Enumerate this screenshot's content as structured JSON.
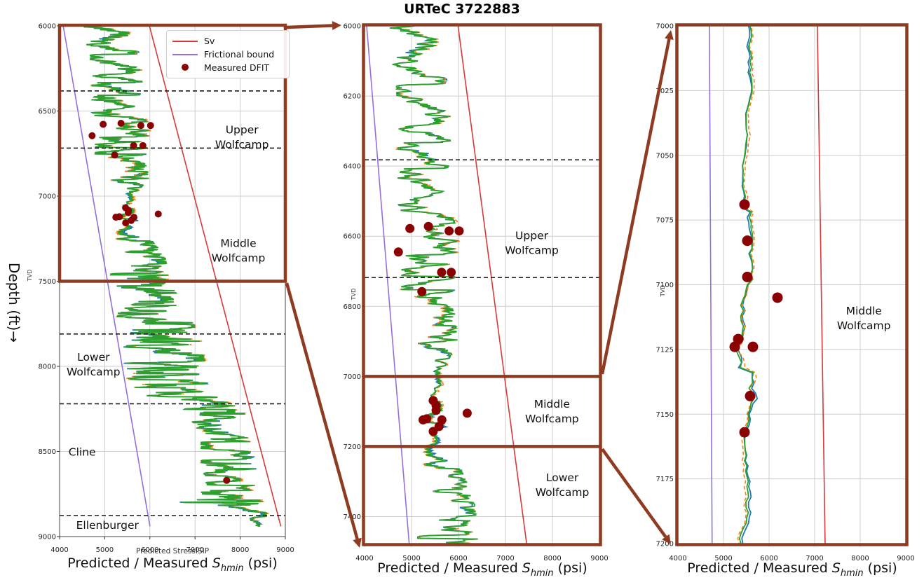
{
  "title": "URTeC 3722883",
  "axis_labels": {
    "depth_axis": "Depth (ft)→",
    "tvd": "TVD",
    "small_left_xlabel": "Predicted StressISIP",
    "big_xlabel_parts": {
      "prefix": "Predicted / Measured ",
      "symbol": "S",
      "subscript": "hmin",
      "suffix": " (psi)"
    }
  },
  "legend": {
    "items": [
      {
        "label": "Sv",
        "marker": "line",
        "color": "#d63a3a"
      },
      {
        "label": "Frictional bound",
        "marker": "line",
        "color": "#9370db"
      },
      {
        "label": "Measured DFIT",
        "marker": "dot",
        "color": "#8b0000"
      }
    ]
  },
  "colors": {
    "sv_red": "#d63a3a",
    "frictional_purple": "#9370db",
    "dfit_darkred": "#8b0000",
    "trace_green": "#2ca02c",
    "trace_blue": "#1f77b4",
    "trace_orange": "#ff7f0e",
    "highlight_brown": "#8e3b22",
    "grid_gray": "#cccccc",
    "spine_gray": "#444444",
    "boundary_black": "#1a1a1a"
  },
  "chart_data": {
    "type": "line",
    "title": "URTeC 3722883",
    "xlabel": "Predicted / Measured S_hmin (psi)",
    "ylabel": "Depth (ft), TVD",
    "grid": true,
    "shared": {
      "x_ticks": [
        4000,
        5000,
        6000,
        7000,
        8000,
        9000
      ],
      "formation_boundaries_ft": [
        6382,
        6718,
        7810,
        8220,
        8876
      ],
      "dfit_points": [
        {
          "psi": 4965,
          "depth": 6578
        },
        {
          "psi": 5360,
          "depth": 6572
        },
        {
          "psi": 5800,
          "depth": 6585
        },
        {
          "psi": 6015,
          "depth": 6585
        },
        {
          "psi": 4720,
          "depth": 6645
        },
        {
          "psi": 5640,
          "depth": 6703
        },
        {
          "psi": 5845,
          "depth": 6703
        },
        {
          "psi": 5220,
          "depth": 6758
        },
        {
          "psi": 5462,
          "depth": 7069
        },
        {
          "psi": 5523,
          "depth": 7083
        },
        {
          "psi": 5523,
          "depth": 7097
        },
        {
          "psi": 6185,
          "depth": 7105
        },
        {
          "psi": 5323,
          "depth": 7121
        },
        {
          "psi": 5246,
          "depth": 7124
        },
        {
          "psi": 5646,
          "depth": 7124
        },
        {
          "psi": 5585,
          "depth": 7143
        },
        {
          "psi": 5462,
          "depth": 7157
        },
        {
          "psi": 7700,
          "depth": 8670
        }
      ],
      "traces": [
        {
          "name": "predicted-stress-green",
          "color": "#2ca02c",
          "dash": null,
          "width": 1.8
        },
        {
          "name": "predicted-stress-blue",
          "color": "#1f77b4",
          "dash": null,
          "width": 1.8
        },
        {
          "name": "predicted-stress-orange",
          "color": "#ff7f0e",
          "dash": "5 3.5",
          "width": 1.6
        }
      ],
      "curve_envelope": [
        [
          6000,
          4900,
          520
        ],
        [
          6150,
          5150,
          480
        ],
        [
          6300,
          5250,
          520
        ],
        [
          6450,
          5200,
          500
        ],
        [
          6600,
          5350,
          560
        ],
        [
          6760,
          5300,
          520
        ],
        [
          6900,
          5400,
          520
        ],
        [
          7000,
          5480,
          120
        ],
        [
          7060,
          5520,
          110
        ],
        [
          7120,
          5470,
          150
        ],
        [
          7135,
          5520,
          260
        ],
        [
          7160,
          5450,
          120
        ],
        [
          7200,
          5420,
          160
        ],
        [
          7240,
          5500,
          420
        ],
        [
          7350,
          5700,
          560
        ],
        [
          7500,
          5750,
          620
        ],
        [
          7650,
          5950,
          700
        ],
        [
          7800,
          6150,
          820
        ],
        [
          7980,
          6300,
          820
        ],
        [
          8150,
          6350,
          800
        ],
        [
          8240,
          7350,
          620
        ],
        [
          8400,
          7650,
          520
        ],
        [
          8560,
          7700,
          560
        ],
        [
          8720,
          7800,
          520
        ],
        [
          8795,
          7100,
          1350
        ],
        [
          8820,
          8100,
          350
        ],
        [
          8880,
          8420,
          220
        ],
        [
          8940,
          8450,
          150
        ]
      ],
      "curve_depth_range": [
        6000,
        8940
      ],
      "seed": 42
    },
    "panels": [
      {
        "id": "left",
        "depth_range": [
          6000,
          9000
        ],
        "x_range": [
          4000,
          9000
        ],
        "y_ticks": [
          6000,
          6500,
          7000,
          7500,
          8000,
          8500,
          9000
        ],
        "sv_line": [
          [
            6000,
            5990
          ],
          [
            8940,
            8901
          ]
        ],
        "frictional_bound": [
          [
            6000,
            4080
          ],
          [
            8940,
            6001
          ]
        ],
        "highlight": {
          "type": "rect",
          "depth_top": 6000,
          "depth_bottom": 7500
        },
        "formation_labels": [
          {
            "lines": [
              "Upper",
              "Wolfcamp"
            ],
            "psi": 8040,
            "depth": 6655
          },
          {
            "lines": [
              "Middle",
              "Wolfcamp"
            ],
            "psi": 7960,
            "depth": 7320
          },
          {
            "lines": [
              "Lower",
              "Wolfcamp"
            ],
            "psi": 4750,
            "depth": 7990
          },
          {
            "lines": [
              "Cline"
            ],
            "psi": 4500,
            "depth": 8505
          },
          {
            "lines": [
              "Ellenburger"
            ],
            "psi": 5060,
            "depth": 8935
          }
        ],
        "dfit_radius": 5
      },
      {
        "id": "middle",
        "depth_range": [
          6000,
          7477
        ],
        "x_range": [
          4000,
          9000
        ],
        "y_ticks": [
          6000,
          6200,
          6400,
          6600,
          6800,
          7000,
          7200,
          7400
        ],
        "sv_line": [
          [
            6000,
            5990
          ],
          [
            7477,
            7450
          ]
        ],
        "frictional_bound": [
          [
            6000,
            4045
          ],
          [
            7477,
            4950
          ]
        ],
        "highlight": {
          "type": "frame_with_lines",
          "line_depths": [
            7000,
            7200
          ]
        },
        "formation_labels": [
          {
            "lines": [
              "Upper",
              "Wolfcamp"
            ],
            "psi": 7560,
            "depth": 6620
          },
          {
            "lines": [
              "Middle",
              "Wolfcamp"
            ],
            "psi": 7990,
            "depth": 7100
          },
          {
            "lines": [
              "Lower",
              "Wolfcamp"
            ],
            "psi": 8210,
            "depth": 7310
          }
        ],
        "dfit_radius": 6.5
      },
      {
        "id": "right",
        "depth_range": [
          7000,
          7200
        ],
        "x_range": [
          4000,
          9000
        ],
        "y_ticks": [
          7000,
          7025,
          7050,
          7075,
          7100,
          7125,
          7150,
          7175,
          7200
        ],
        "sv_line": [
          [
            7000,
            7060
          ],
          [
            7200,
            7230
          ]
        ],
        "frictional_bound": [
          [
            7000,
            4690
          ],
          [
            7200,
            4750
          ]
        ],
        "highlight": {
          "type": "frame"
        },
        "formation_labels": [
          {
            "lines": [
              "Middle",
              "Wolfcamp"
            ],
            "psi": 8080,
            "depth": 7113
          }
        ],
        "dfit_radius": 7.5
      }
    ],
    "connectors": [
      {
        "from": "left-highlight-top-right",
        "to": "middle-plot-top-left"
      },
      {
        "from": "left-highlight-bottom-right",
        "to": "middle-plot-bottom-left"
      },
      {
        "from": "middle-highlight-top-right",
        "to": "right-plot-top-left"
      },
      {
        "from": "middle-highlight-bottom-right",
        "to": "right-plot-bottom-left"
      }
    ]
  }
}
